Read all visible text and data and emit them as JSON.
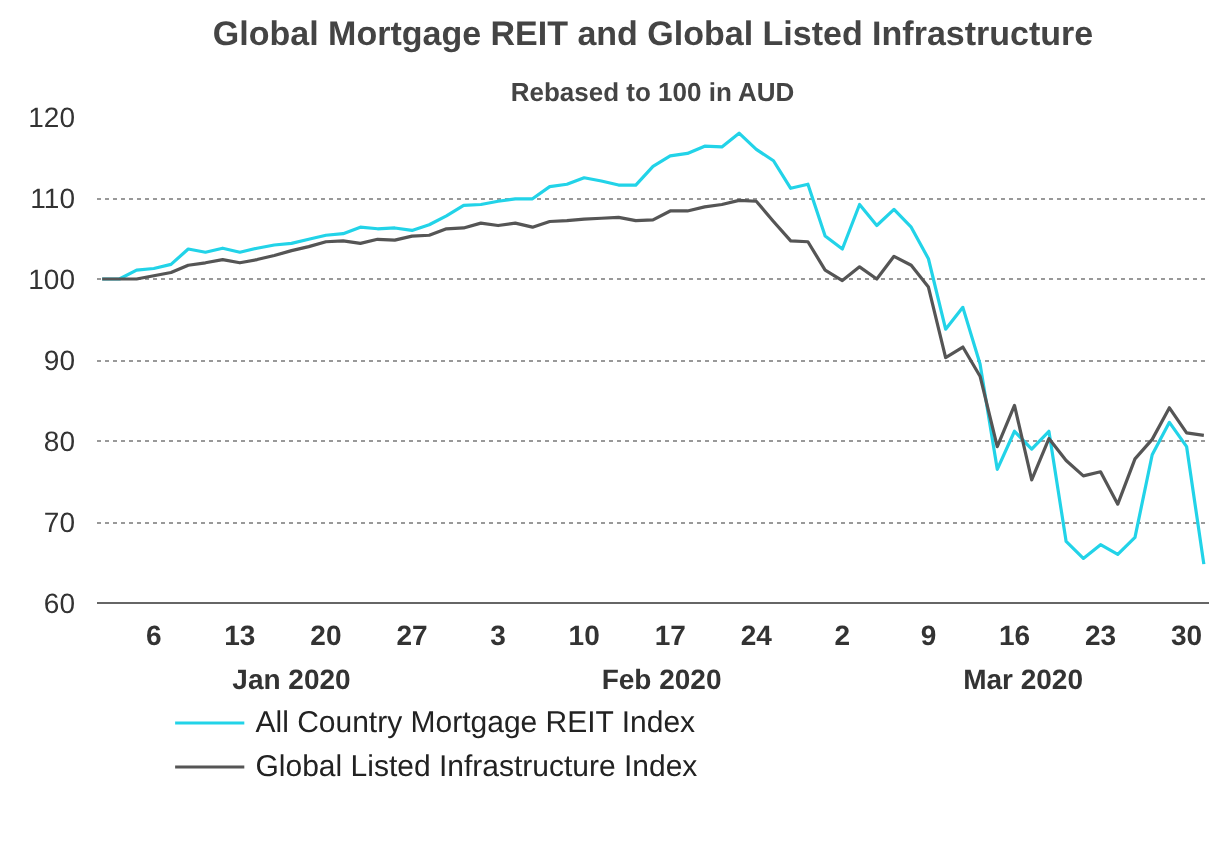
{
  "chart_data": {
    "type": "line",
    "title": "Global Mortgage REIT and Global Listed Infrastructure",
    "subtitle": "Rebased to 100 in AUD",
    "categories": [
      null,
      null,
      null,
      "6",
      null,
      null,
      null,
      null,
      "13",
      null,
      null,
      null,
      null,
      "20",
      null,
      null,
      null,
      null,
      "27",
      null,
      null,
      null,
      null,
      "3",
      null,
      null,
      null,
      null,
      "10",
      null,
      null,
      null,
      null,
      "17",
      null,
      null,
      null,
      null,
      "24",
      null,
      null,
      null,
      null,
      "2",
      null,
      null,
      null,
      null,
      "9",
      null,
      null,
      null,
      null,
      "16",
      null,
      null,
      null,
      null,
      "23",
      null,
      null,
      null,
      null,
      "30",
      null
    ],
    "annotations": [
      "Jan 2020",
      "Feb 2020",
      "Mar 2020"
    ],
    "ylim": [
      60,
      120
    ],
    "yticks": [
      60,
      70,
      80,
      90,
      100,
      110,
      120
    ],
    "grid": "y",
    "legend": "bottom left",
    "line_style": "solid",
    "marker": "none",
    "series": [
      {
        "name": "All Country Mortgage REIT Index",
        "color": "#22d3e8",
        "values": [
          100,
          100,
          101.1,
          101.3,
          101.8,
          103.7,
          103.3,
          103.8,
          103.3,
          103.8,
          104.2,
          104.4,
          104.9,
          105.4,
          105.6,
          106.4,
          106.2,
          106.3,
          106.0,
          106.7,
          107.8,
          109.1,
          109.2,
          109.6,
          109.9,
          109.9,
          111.4,
          111.7,
          112.5,
          112.1,
          111.6,
          111.6,
          113.9,
          115.2,
          115.5,
          116.4,
          116.3,
          118.0,
          116.0,
          114.6,
          111.2,
          111.7,
          105.3,
          103.7,
          109.2,
          106.6,
          108.6,
          106.4,
          102.5,
          93.8,
          96.5,
          89.5,
          76.5,
          81.2,
          79.0,
          81.2,
          67.6,
          65.5,
          67.2,
          66.0,
          68.1,
          78.3,
          82.3,
          79.3,
          64.8
        ]
      },
      {
        "name": "Global Listed Infrastructure Index",
        "color": "#555555",
        "values": [
          100,
          100,
          100,
          100.4,
          100.8,
          101.7,
          102.0,
          102.4,
          102.0,
          102.4,
          102.9,
          103.5,
          104.0,
          104.6,
          104.7,
          104.4,
          104.9,
          104.8,
          105.3,
          105.4,
          106.2,
          106.3,
          106.9,
          106.6,
          106.9,
          106.4,
          107.1,
          107.2,
          107.4,
          107.5,
          107.6,
          107.2,
          107.3,
          108.4,
          108.4,
          108.9,
          109.2,
          109.7,
          109.6,
          107.1,
          104.7,
          104.6,
          101.1,
          99.8,
          101.5,
          100.0,
          102.8,
          101.7,
          99.0,
          90.3,
          91.6,
          88.0,
          79.3,
          84.4,
          75.2,
          80.3,
          77.6,
          75.7,
          76.2,
          72.2,
          77.8,
          80.2,
          84.1,
          81.0,
          80.7
        ]
      }
    ]
  }
}
